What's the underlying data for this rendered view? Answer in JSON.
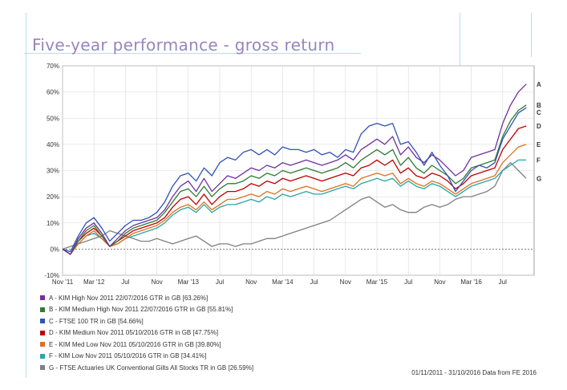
{
  "slide": {
    "title": "Five-year performance  -  gross return",
    "source_note": "01/11/2011 - 31/10/2016 Data from FE 2016"
  },
  "colors": {
    "title": "#9a84bd",
    "guide": "#b8e0e3",
    "grid": "#d9d9d9",
    "zero_line": "#555555"
  },
  "chart_data": {
    "type": "line",
    "title": "",
    "xlabel": "",
    "ylabel": "",
    "x_range": [
      "2011-11",
      "2016-10"
    ],
    "ylim": [
      -10,
      70
    ],
    "y_ticks": [
      -10,
      0,
      10,
      20,
      30,
      40,
      50,
      60,
      70
    ],
    "y_tick_labels": [
      "-10%",
      "0%",
      "10%",
      "20%",
      "30%",
      "40%",
      "50%",
      "60%",
      "70%"
    ],
    "x_ticks": [
      "2011-11",
      "2012-03",
      "2012-07",
      "2012-11",
      "2013-03",
      "2013-07",
      "2013-11",
      "2014-03",
      "2014-07",
      "2014-11",
      "2015-03",
      "2015-07",
      "2015-11",
      "2016-03",
      "2016-07"
    ],
    "x_tick_labels": [
      "Nov '11",
      "Mar '12",
      "Jul",
      "Nov",
      "Mar '13",
      "Jul",
      "Nov",
      "Mar '14",
      "Jul",
      "Nov",
      "Mar '15",
      "Jul",
      "Nov",
      "Mar '16",
      "Jul"
    ],
    "grid": true,
    "legend_position": "bottom",
    "x": [
      "2011-11",
      "2011-12",
      "2012-01",
      "2012-02",
      "2012-03",
      "2012-04",
      "2012-05",
      "2012-06",
      "2012-07",
      "2012-08",
      "2012-09",
      "2012-10",
      "2012-11",
      "2012-12",
      "2013-01",
      "2013-02",
      "2013-03",
      "2013-04",
      "2013-05",
      "2013-06",
      "2013-07",
      "2013-08",
      "2013-09",
      "2013-10",
      "2013-11",
      "2013-12",
      "2014-01",
      "2014-02",
      "2014-03",
      "2014-04",
      "2014-05",
      "2014-06",
      "2014-07",
      "2014-08",
      "2014-09",
      "2014-10",
      "2014-11",
      "2014-12",
      "2015-01",
      "2015-02",
      "2015-03",
      "2015-04",
      "2015-05",
      "2015-06",
      "2015-07",
      "2015-08",
      "2015-09",
      "2015-10",
      "2015-11",
      "2015-12",
      "2016-01",
      "2016-02",
      "2016-03",
      "2016-04",
      "2016-05",
      "2016-06",
      "2016-07",
      "2016-08",
      "2016-09",
      "2016-10"
    ],
    "series": [
      {
        "letter": "A",
        "name": "A - KIM High Nov 2011  22/07/2016 GTR in GB [63.26%]",
        "color": "#7030a0",
        "values": [
          0,
          -2,
          4,
          8,
          10,
          6,
          1,
          4,
          7,
          9,
          10,
          11,
          12,
          15,
          20,
          24,
          26,
          22,
          27,
          22,
          25,
          28,
          27,
          29,
          31,
          30,
          32,
          31,
          33,
          32,
          33,
          34,
          33,
          32,
          33,
          34,
          36,
          34,
          38,
          40,
          42,
          40,
          43,
          36,
          39,
          35,
          33,
          36,
          34,
          31,
          28,
          30,
          35,
          36,
          37,
          38,
          48,
          55,
          60,
          63
        ]
      },
      {
        "letter": "B",
        "name": "B - KIM Medium High Nov 2011  22/07/2016 GTR in GB [55.81%]",
        "color": "#2e7d32",
        "values": [
          0,
          -2,
          3,
          7,
          9,
          5,
          1,
          3,
          6,
          8,
          9,
          10,
          11,
          14,
          18,
          22,
          23,
          20,
          24,
          20,
          23,
          25,
          25,
          26,
          28,
          27,
          29,
          28,
          30,
          29,
          30,
          31,
          30,
          29,
          30,
          31,
          33,
          31,
          34,
          36,
          38,
          36,
          38,
          32,
          35,
          31,
          29,
          32,
          30,
          28,
          25,
          27,
          31,
          32,
          33,
          34,
          43,
          49,
          53,
          55
        ]
      },
      {
        "letter": "C",
        "name": "C - FTSE 100 TR in GB [54.66%]",
        "color": "#2f52b8",
        "values": [
          0,
          -1,
          5,
          10,
          12,
          8,
          3,
          6,
          9,
          11,
          11,
          12,
          14,
          18,
          24,
          28,
          29,
          26,
          31,
          28,
          33,
          35,
          34,
          37,
          38,
          36,
          38,
          36,
          39,
          38,
          38,
          37,
          38,
          36,
          37,
          35,
          38,
          37,
          44,
          47,
          48,
          47,
          48,
          40,
          41,
          37,
          32,
          37,
          32,
          28,
          22,
          26,
          30,
          32,
          31,
          33,
          42,
          47,
          52,
          54
        ]
      },
      {
        "letter": "D",
        "name": "D - KIM Medium Nov 2011  05/10/2016 GTR in GB [47.75%]",
        "color": "#c00000",
        "values": [
          0,
          -2,
          3,
          6,
          8,
          5,
          1,
          3,
          5,
          7,
          8,
          9,
          10,
          12,
          16,
          19,
          20,
          17,
          21,
          17,
          20,
          22,
          22,
          23,
          25,
          24,
          26,
          25,
          27,
          26,
          27,
          28,
          27,
          26,
          27,
          28,
          29,
          28,
          31,
          32,
          34,
          32,
          34,
          29,
          31,
          28,
          27,
          29,
          28,
          26,
          23,
          25,
          28,
          29,
          30,
          31,
          38,
          42,
          46,
          47
        ]
      },
      {
        "letter": "E",
        "name": "E - KIM Med Low Nov 2011  05/10/2016 GTR in GB [39.80%]",
        "color": "#e07020",
        "values": [
          0,
          -2,
          2,
          5,
          7,
          4,
          1,
          2,
          4,
          6,
          7,
          8,
          9,
          11,
          14,
          16,
          17,
          15,
          18,
          15,
          17,
          19,
          19,
          20,
          21,
          20,
          22,
          21,
          23,
          22,
          23,
          24,
          23,
          22,
          23,
          24,
          25,
          24,
          27,
          28,
          29,
          28,
          29,
          25,
          27,
          25,
          24,
          26,
          25,
          23,
          21,
          23,
          25,
          26,
          27,
          28,
          33,
          36,
          39,
          40
        ]
      },
      {
        "letter": "F",
        "name": "F - KIM Low Nov 2011  05/10/2016 GTR in GB [34.41%]",
        "color": "#2aa6a6",
        "values": [
          0,
          -2,
          2,
          5,
          6,
          4,
          1,
          2,
          4,
          5,
          6,
          7,
          8,
          10,
          13,
          15,
          16,
          14,
          17,
          14,
          16,
          17,
          17,
          18,
          19,
          18,
          20,
          19,
          21,
          20,
          21,
          22,
          21,
          21,
          22,
          23,
          24,
          23,
          25,
          26,
          27,
          26,
          27,
          24,
          26,
          24,
          23,
          25,
          24,
          22,
          20,
          22,
          24,
          25,
          26,
          27,
          30,
          32,
          34,
          34
        ]
      },
      {
        "letter": "G",
        "name": "G - FTSE Actuaries UK Conventional Gilts All Stocks TR in GB [26.59%]",
        "color": "#808080",
        "values": [
          0,
          1,
          2,
          3,
          4,
          5,
          7,
          6,
          5,
          4,
          3,
          3,
          4,
          3,
          2,
          3,
          4,
          5,
          3,
          1,
          2,
          2,
          1,
          2,
          2,
          3,
          4,
          4,
          5,
          6,
          7,
          8,
          9,
          10,
          11,
          13,
          15,
          17,
          19,
          20,
          18,
          16,
          17,
          15,
          14,
          14,
          16,
          17,
          16,
          17,
          19,
          20,
          20,
          21,
          22,
          24,
          30,
          33,
          30,
          27
        ]
      }
    ]
  }
}
